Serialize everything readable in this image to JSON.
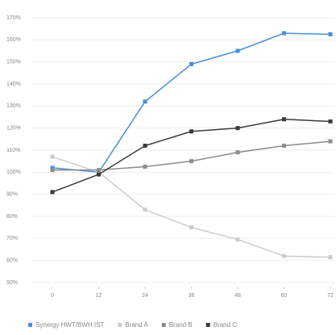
{
  "chart_data": {
    "type": "line",
    "x": [
      0,
      12,
      24,
      36,
      48,
      60,
      72
    ],
    "xlim": [
      0,
      72
    ],
    "xticks": [
      0,
      12,
      24,
      36,
      48,
      60,
      72
    ],
    "ylim": [
      50,
      170
    ],
    "yticks": [
      {
        "value": 50,
        "label": "50%"
      },
      {
        "value": 60,
        "label": "60%"
      },
      {
        "value": 70,
        "label": "70%"
      },
      {
        "value": 80,
        "label": "80%"
      },
      {
        "value": 90,
        "label": "90%"
      },
      {
        "value": 100,
        "label": "100%"
      },
      {
        "value": 110,
        "label": "110%"
      },
      {
        "value": 120,
        "label": "120%"
      },
      {
        "value": 130,
        "label": "130%"
      },
      {
        "value": 140,
        "label": "140%"
      },
      {
        "value": 150,
        "label": "150%"
      },
      {
        "value": 160,
        "label": "160%"
      },
      {
        "value": 170,
        "label": "170%"
      }
    ],
    "grid": true,
    "series": [
      {
        "name": "Synergy HWT/BWH IST",
        "color": "#4a8fd8",
        "values": [
          102,
          100,
          132,
          149,
          155,
          163,
          162.5
        ]
      },
      {
        "name": "Brand A",
        "color": "#cccccc",
        "values": [
          107,
          100,
          83,
          75,
          69.5,
          62,
          61.5
        ]
      },
      {
        "name": "Brand B",
        "color": "#8c8c8c",
        "values": [
          101,
          101,
          102.5,
          105,
          109,
          112,
          114
        ]
      },
      {
        "name": "Brand C",
        "color": "#3a3a3a",
        "values": [
          91,
          99,
          112,
          118.5,
          120,
          124,
          123
        ]
      }
    ]
  }
}
